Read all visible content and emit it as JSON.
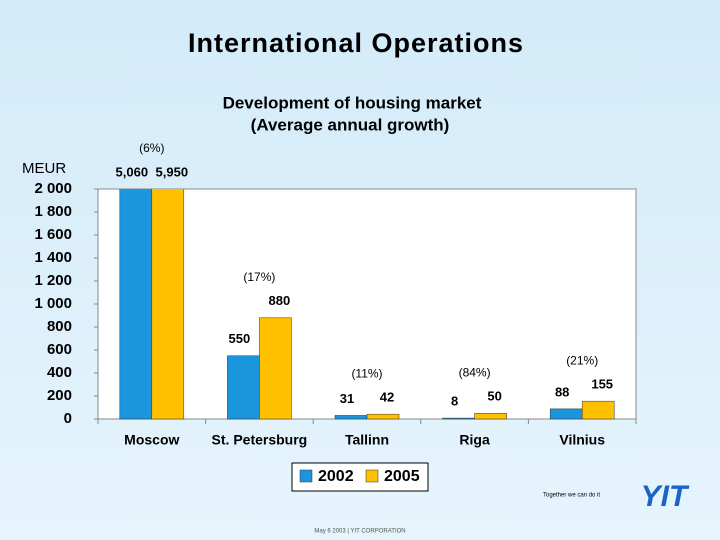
{
  "chart_data": {
    "type": "bar",
    "title": "International Operations",
    "subtitle": [
      "Development of housing market",
      "(Average annual growth)"
    ],
    "y_axis_label": "MEUR",
    "categories": [
      "Moscow",
      "St. Petersburg",
      "Tallinn",
      "Riga",
      "Vilnius"
    ],
    "series": [
      {
        "name": "2002",
        "color": "#1b95dc",
        "values": [
          5060,
          550,
          31,
          8,
          88
        ],
        "value_labels": [
          "5,060",
          "550",
          "31",
          "8",
          "88"
        ]
      },
      {
        "name": "2005",
        "color": "#ffc000",
        "values": [
          5950,
          880,
          42,
          50,
          155
        ],
        "value_labels": [
          "5,950",
          "880",
          "42",
          "50",
          "155"
        ]
      }
    ],
    "annotations": [
      "(6%)",
      "(17%)",
      "(11%)",
      "(84%)",
      "(21%)"
    ],
    "ylim": [
      0,
      2000
    ],
    "yticks": [
      0,
      200,
      400,
      600,
      800,
      {
        "value": 1000,
        "label": "1 000"
      },
      {
        "value": 1200,
        "label": "1 200"
      },
      {
        "value": 1400,
        "label": "1 400"
      },
      {
        "value": 1600,
        "label": "1 600"
      },
      {
        "value": 1800,
        "label": "1 800"
      },
      {
        "value": 2000,
        "label": "2 000"
      }
    ],
    "grid": false,
    "legend": "bottom"
  },
  "footer": {
    "slogan": "Together we can do it",
    "logo": "YIT",
    "note": "May 6 2003  |  YIT CORPORATION"
  }
}
